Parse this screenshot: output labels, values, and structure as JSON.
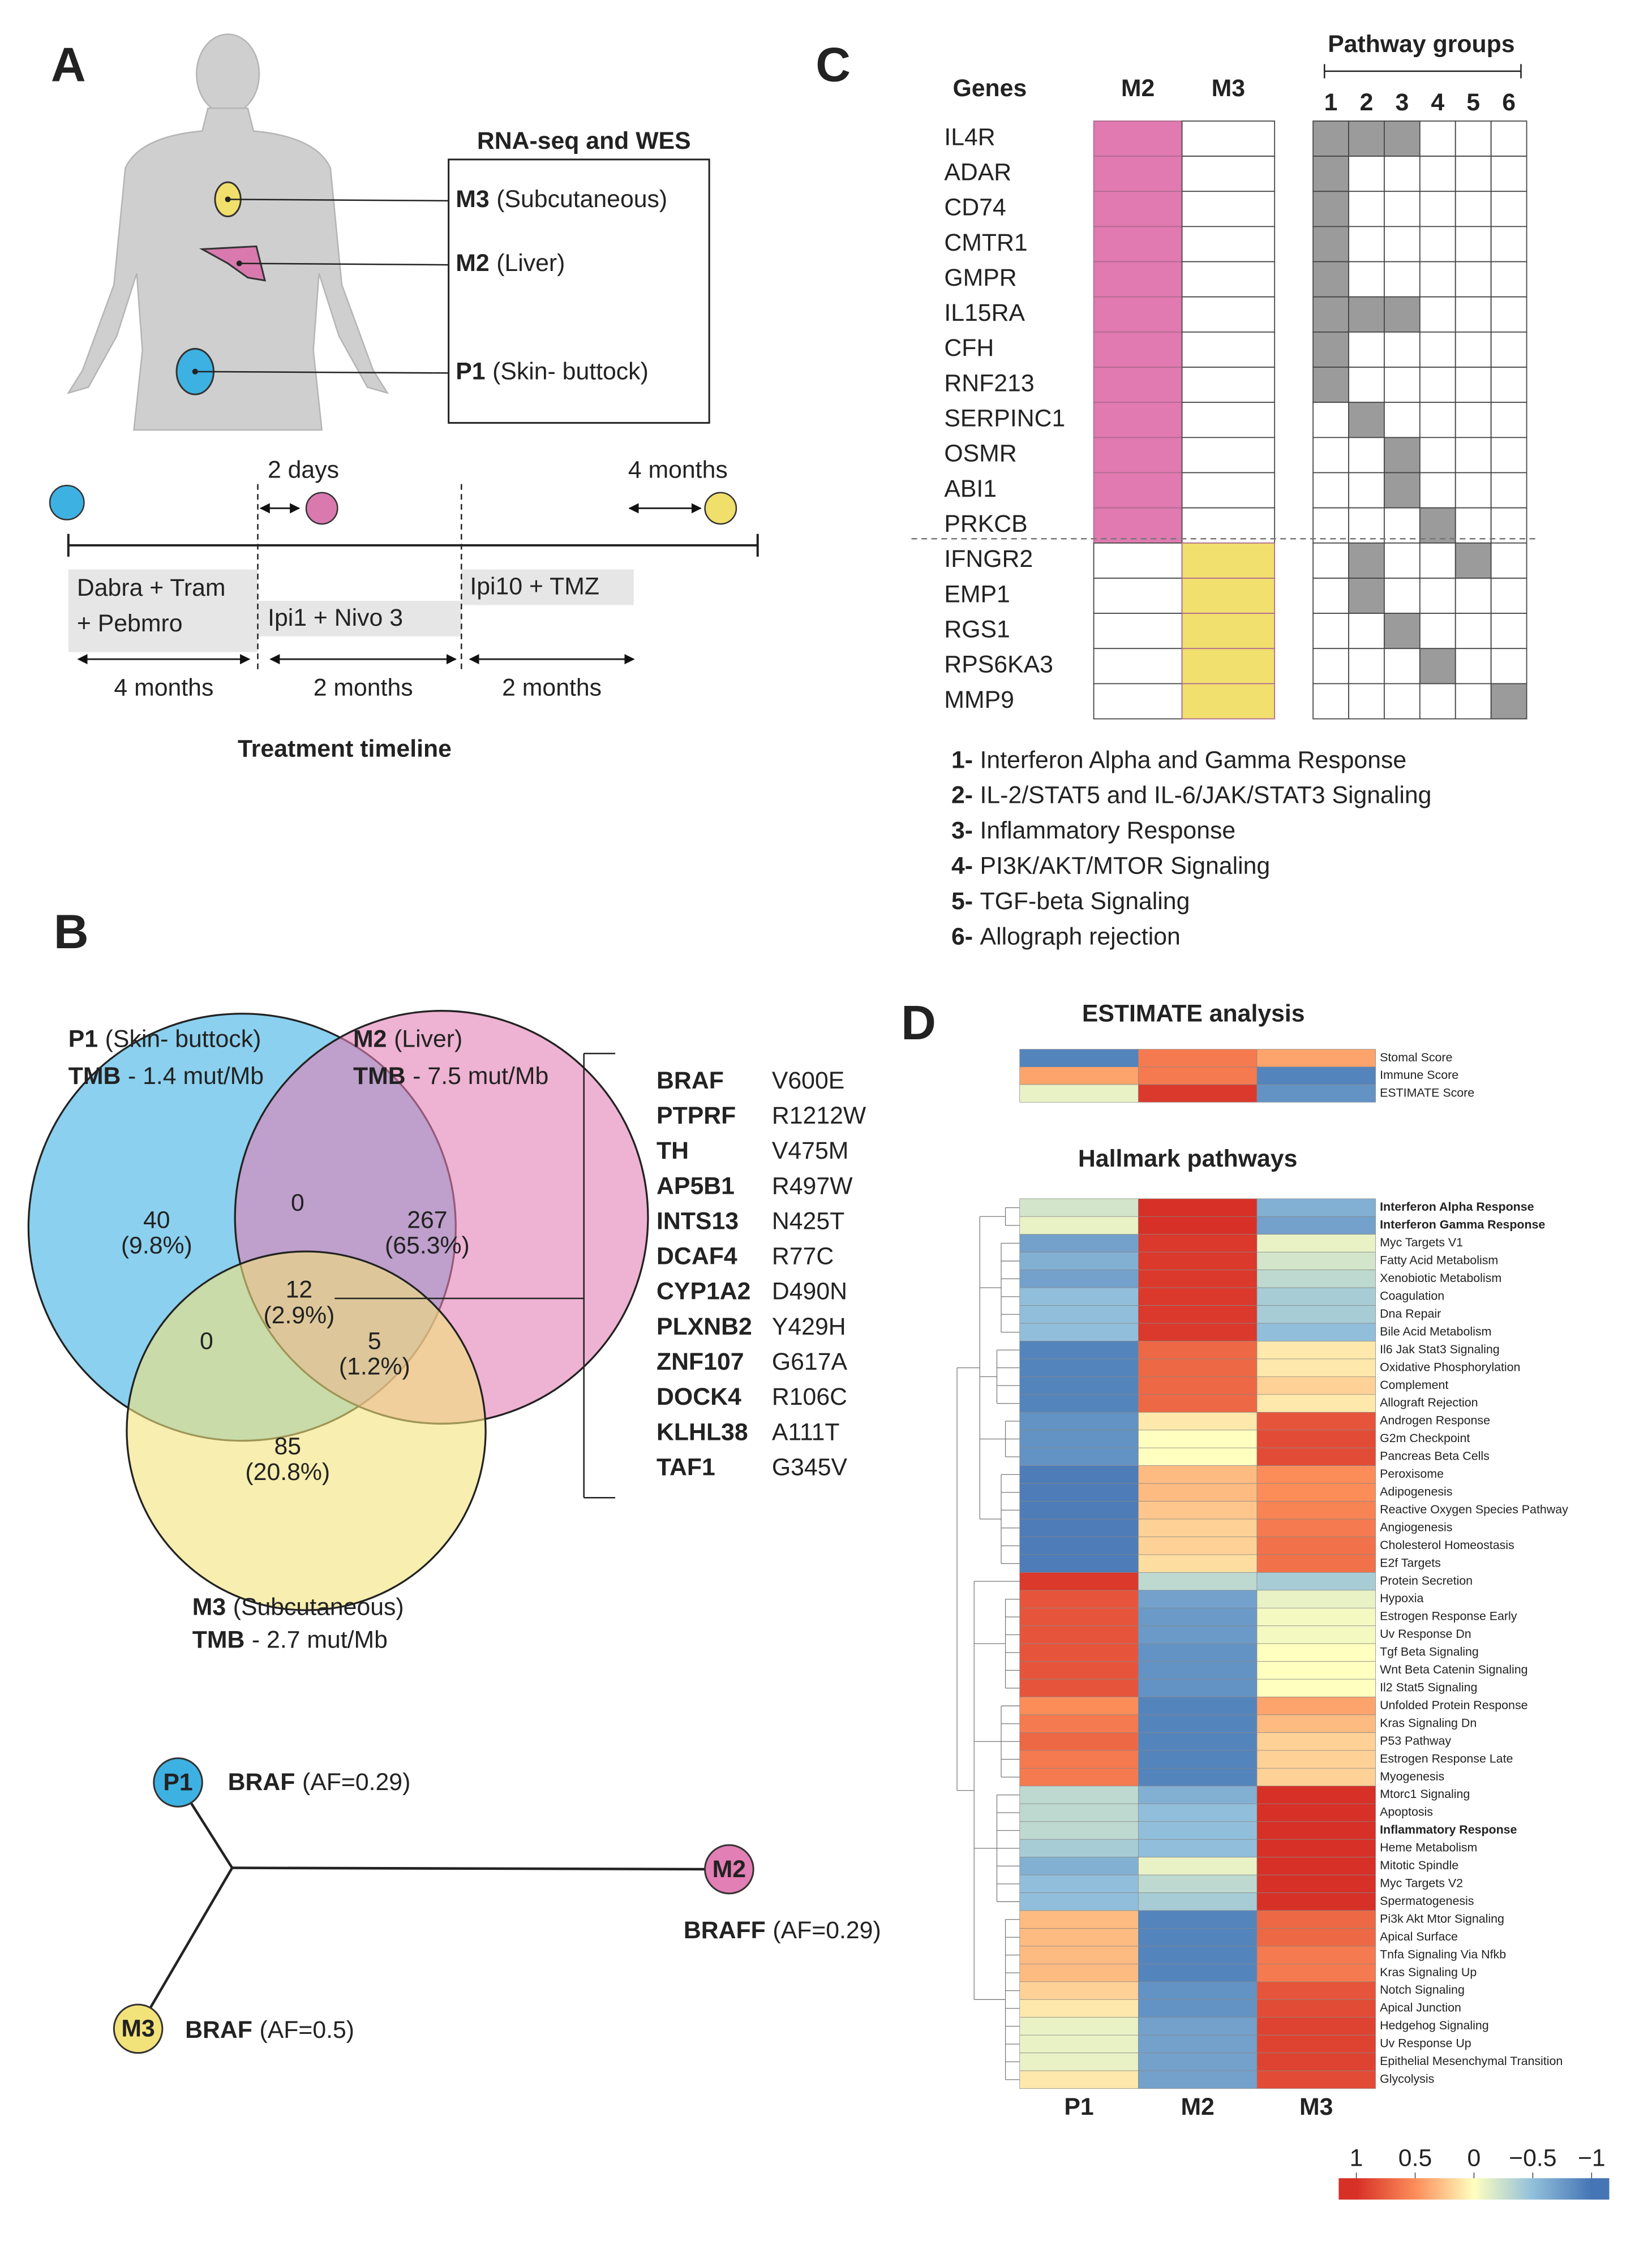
{
  "panel_a": {
    "label": "A",
    "box_title": "RNA-seq and WES",
    "sites": [
      {
        "id": "M3",
        "name": "(Subcutaneous)",
        "color": "#f1df6c"
      },
      {
        "id": "M2",
        "name": "(Liver)",
        "color": "#d979ad"
      },
      {
        "id": "P1",
        "name": "(Skin- buttock)",
        "color": "#3db1e2"
      }
    ],
    "intervals": [
      "2 days",
      "4 months"
    ],
    "treatments": [
      [
        "Dabra + Tram",
        "+ Pebmro"
      ],
      [
        "Ipi1 + Nivo 3"
      ],
      [
        "Ipi10 + TMZ"
      ]
    ],
    "durations": [
      "4 months",
      "2 months",
      "2 months"
    ],
    "timeline_title": "Treatment timeline"
  },
  "panel_b": {
    "label": "B",
    "sets": [
      {
        "id": "P1",
        "name": "(Skin- buttock)",
        "tmb": "TMB",
        "tmb_value": "- 1.4 mut/Mb",
        "color": "#3db1e2"
      },
      {
        "id": "M2",
        "name": "(Liver)",
        "tmb": "TMB",
        "tmb_value": "- 7.5 mut/Mb",
        "color": "#e27fb4"
      },
      {
        "id": "M3",
        "name": "(Subcutaneous)",
        "tmb": "TMB",
        "tmb_value": "- 2.7 mut/Mb",
        "color": "#f2e27a"
      }
    ],
    "regions": [
      {
        "count": 40,
        "percent": "(9.8%)"
      },
      {
        "count": 0
      },
      {
        "count": 267,
        "percent": "(65.3%)"
      },
      {
        "count": 12,
        "percent": "(2.9%)"
      },
      {
        "count": 0
      },
      {
        "count": 5,
        "percent": "(1.2%)"
      },
      {
        "count": 85,
        "percent": "(20.8%)"
      }
    ],
    "shared_mutations": [
      {
        "gene": "BRAF",
        "change": "V600E"
      },
      {
        "gene": "PTPRF",
        "change": "R1212W"
      },
      {
        "gene": "TH",
        "change": "V475M"
      },
      {
        "gene": "AP5B1",
        "change": "R497W"
      },
      {
        "gene": "INTS13",
        "change": "N425T"
      },
      {
        "gene": "DCAF4",
        "change": "R77C"
      },
      {
        "gene": "CYP1A2",
        "change": "D490N"
      },
      {
        "gene": "PLXNB2",
        "change": "Y429H"
      },
      {
        "gene": "ZNF107",
        "change": "G617A"
      },
      {
        "gene": "DOCK4",
        "change": "R106C"
      },
      {
        "gene": "KLHL38",
        "change": "A111T"
      },
      {
        "gene": "TAF1",
        "change": "G345V"
      }
    ],
    "tree": [
      {
        "id": "P1",
        "gene": "BRAF",
        "af": "(AF=0.29)"
      },
      {
        "id": "M2",
        "gene": "BRAFF",
        "af": "(AF=0.29)"
      },
      {
        "id": "M3",
        "gene": "BRAF",
        "af": "(AF=0.5)"
      }
    ]
  },
  "panel_c": {
    "label": "C",
    "genes_header": "Genes",
    "samples": [
      "M2",
      "M3"
    ],
    "sample_colors": [
      "#e07ab0",
      "#f1df6e"
    ],
    "pathway_header": "Pathway groups",
    "groups": [
      1,
      2,
      3,
      4,
      5,
      6
    ],
    "genes": [
      {
        "name": "IL4R",
        "sample": "M2",
        "pathways": [
          1,
          2,
          3
        ]
      },
      {
        "name": "ADAR",
        "sample": "M2",
        "pathways": [
          1
        ]
      },
      {
        "name": "CD74",
        "sample": "M2",
        "pathways": [
          1
        ]
      },
      {
        "name": "CMTR1",
        "sample": "M2",
        "pathways": [
          1
        ]
      },
      {
        "name": "GMPR",
        "sample": "M2",
        "pathways": [
          1
        ]
      },
      {
        "name": "IL15RA",
        "sample": "M2",
        "pathways": [
          1,
          2,
          3
        ]
      },
      {
        "name": "CFH",
        "sample": "M2",
        "pathways": [
          1
        ]
      },
      {
        "name": "RNF213",
        "sample": "M2",
        "pathways": [
          1
        ]
      },
      {
        "name": "SERPINC1",
        "sample": "M2",
        "pathways": [
          2
        ]
      },
      {
        "name": "OSMR",
        "sample": "M2",
        "pathways": [
          3
        ]
      },
      {
        "name": "ABI1",
        "sample": "M2",
        "pathways": [
          3
        ]
      },
      {
        "name": "PRKCB",
        "sample": "M2",
        "pathways": [
          4
        ]
      },
      {
        "name": "IFNGR2",
        "sample": "M3",
        "pathways": [
          2,
          5
        ]
      },
      {
        "name": "EMP1",
        "sample": "M3",
        "pathways": [
          2
        ]
      },
      {
        "name": "RGS1",
        "sample": "M3",
        "pathways": [
          3
        ]
      },
      {
        "name": "RPS6KA3",
        "sample": "M3",
        "pathways": [
          4
        ]
      },
      {
        "name": "MMP9",
        "sample": "M3",
        "pathways": [
          6
        ]
      }
    ],
    "legend": [
      {
        "key": "1-",
        "text": "Interferon Alpha and Gamma Response"
      },
      {
        "key": "2-",
        "text": "IL-2/STAT5 and IL-6/JAK/STAT3 Signaling"
      },
      {
        "key": "3-",
        "text": "Inflammatory Response"
      },
      {
        "key": "4-",
        "text": "PI3K/AKT/MTOR Signaling"
      },
      {
        "key": "5-",
        "text": "TGF-beta Signaling"
      },
      {
        "key": "6-",
        "text": "Allograph rejection"
      }
    ]
  },
  "panel_d": {
    "label": "D",
    "estimate_title": "ESTIMATE analysis",
    "hallmark_title": "Hallmark pathways",
    "columns": [
      "P1",
      "M2",
      "M3"
    ],
    "estimate": [
      {
        "name": "Stomal Score",
        "values": [
          -0.9,
          0.6,
          0.4
        ]
      },
      {
        "name": "Immune Score",
        "values": [
          0.4,
          0.6,
          -0.9
        ]
      },
      {
        "name": "ESTIMATE Score",
        "values": [
          -0.1,
          0.95,
          -0.8
        ]
      }
    ],
    "hallmark": [
      {
        "name": "Interferon Alpha Response",
        "bold": true,
        "values": [
          -0.2,
          1,
          -0.6
        ]
      },
      {
        "name": "Interferon Gamma Response",
        "bold": true,
        "values": [
          -0.1,
          1,
          -0.7
        ]
      },
      {
        "name": "Myc Targets V1",
        "values": [
          -0.7,
          0.95,
          -0.1
        ]
      },
      {
        "name": "Fatty Acid Metabolism",
        "values": [
          -0.6,
          0.95,
          -0.2
        ]
      },
      {
        "name": "Xenobiotic Metabolism",
        "values": [
          -0.7,
          0.95,
          -0.3
        ]
      },
      {
        "name": "Coagulation",
        "values": [
          -0.5,
          0.95,
          -0.4
        ]
      },
      {
        "name": "Dna Repair",
        "values": [
          -0.5,
          0.95,
          -0.4
        ]
      },
      {
        "name": "Bile Acid Metabolism",
        "values": [
          -0.5,
          0.95,
          -0.5
        ]
      },
      {
        "name": "Il6 Jak Stat3 Signaling",
        "values": [
          -0.9,
          0.7,
          0.1
        ]
      },
      {
        "name": "Oxidative Phosphorylation",
        "values": [
          -0.9,
          0.7,
          0.1
        ]
      },
      {
        "name": "Complement",
        "values": [
          -0.9,
          0.7,
          0.2
        ]
      },
      {
        "name": "Allograft Rejection",
        "values": [
          -0.9,
          0.7,
          0.1
        ]
      },
      {
        "name": "Androgen Response",
        "values": [
          -0.8,
          0.1,
          0.8
        ]
      },
      {
        "name": "G2m Checkpoint",
        "values": [
          -0.8,
          0,
          0.85
        ]
      },
      {
        "name": "Pancreas Beta Cells",
        "values": [
          -0.8,
          0,
          0.85
        ]
      },
      {
        "name": "Peroxisome",
        "values": [
          -0.95,
          0.3,
          0.5
        ]
      },
      {
        "name": "Adipogenesis",
        "values": [
          -0.95,
          0.3,
          0.5
        ]
      },
      {
        "name": "Reactive Oxygen Species Pathway",
        "values": [
          -0.95,
          0.25,
          0.55
        ]
      },
      {
        "name": "Angiogenesis",
        "values": [
          -0.95,
          0.2,
          0.6
        ]
      },
      {
        "name": "Cholesterol Homeostasis",
        "values": [
          -0.95,
          0.2,
          0.65
        ]
      },
      {
        "name": "E2f Targets",
        "values": [
          -0.95,
          0.15,
          0.65
        ]
      },
      {
        "name": "Protein Secretion",
        "values": [
          0.95,
          -0.3,
          -0.4
        ]
      },
      {
        "name": "Hypoxia",
        "values": [
          0.8,
          -0.7,
          -0.1
        ]
      },
      {
        "name": "Estrogen Response Early",
        "values": [
          0.8,
          -0.75,
          -0.05
        ]
      },
      {
        "name": "Uv Response Dn",
        "values": [
          0.8,
          -0.75,
          -0.05
        ]
      },
      {
        "name": "Tgf Beta Signaling",
        "values": [
          0.8,
          -0.8,
          0
        ]
      },
      {
        "name": "Wnt Beta Catenin Signaling",
        "values": [
          0.8,
          -0.8,
          0
        ]
      },
      {
        "name": "Il2 Stat5 Signaling",
        "values": [
          0.8,
          -0.8,
          0
        ]
      },
      {
        "name": "Unfolded Protein Response",
        "values": [
          0.5,
          -0.9,
          0.4
        ]
      },
      {
        "name": "Kras Signaling Dn",
        "values": [
          0.6,
          -0.9,
          0.3
        ]
      },
      {
        "name": "P53 Pathway",
        "values": [
          0.7,
          -0.9,
          0.2
        ]
      },
      {
        "name": "Estrogen Response Late",
        "values": [
          0.6,
          -0.9,
          0.2
        ]
      },
      {
        "name": "Myogenesis",
        "values": [
          0.6,
          -0.9,
          0.2
        ]
      },
      {
        "name": "Mtorc1 Signaling",
        "values": [
          -0.3,
          -0.6,
          1
        ]
      },
      {
        "name": "Apoptosis",
        "values": [
          -0.3,
          -0.5,
          1
        ]
      },
      {
        "name": "Inflammatory Response",
        "bold": true,
        "values": [
          -0.3,
          -0.5,
          1
        ]
      },
      {
        "name": "Heme Metabolism",
        "values": [
          -0.4,
          -0.5,
          1
        ]
      },
      {
        "name": "Mitotic Spindle",
        "values": [
          -0.6,
          -0.1,
          1
        ]
      },
      {
        "name": "Myc Targets V2",
        "values": [
          -0.5,
          -0.3,
          1
        ]
      },
      {
        "name": "Spermatogenesis",
        "values": [
          -0.5,
          -0.4,
          1
        ]
      },
      {
        "name": "Pi3k Akt Mtor Signaling",
        "values": [
          0.3,
          -0.9,
          0.7
        ]
      },
      {
        "name": "Apical Surface",
        "values": [
          0.3,
          -0.9,
          0.7
        ]
      },
      {
        "name": "Tnfa Signaling Via Nfkb",
        "values": [
          0.3,
          -0.9,
          0.6
        ]
      },
      {
        "name": "Kras Signaling Up",
        "values": [
          0.3,
          -0.9,
          0.6
        ]
      },
      {
        "name": "Notch Signaling",
        "values": [
          0.2,
          -0.8,
          0.8
        ]
      },
      {
        "name": "Apical Junction",
        "values": [
          0.1,
          -0.8,
          0.85
        ]
      },
      {
        "name": "Hedgehog Signaling",
        "values": [
          -0.1,
          -0.7,
          0.9
        ]
      },
      {
        "name": "Uv Response Up",
        "values": [
          -0.1,
          -0.7,
          0.9
        ]
      },
      {
        "name": "Epithelial Mesenchymal Transition",
        "values": [
          -0.1,
          -0.7,
          0.9
        ]
      },
      {
        "name": "Glycolysis",
        "values": [
          0.1,
          -0.7,
          0.85
        ]
      }
    ],
    "colorbar": {
      "lim": [
        1.15,
        -1.15
      ],
      "ticks": [
        1,
        0.5,
        0,
        {
          "value": -0.5,
          "label": "−0.5"
        },
        {
          "value": -1,
          "label": "−1"
        }
      ],
      "colors": [
        "#d73027",
        "#fc8d59",
        "#ffffbf",
        "#91bfdb",
        "#4575b4"
      ]
    }
  }
}
